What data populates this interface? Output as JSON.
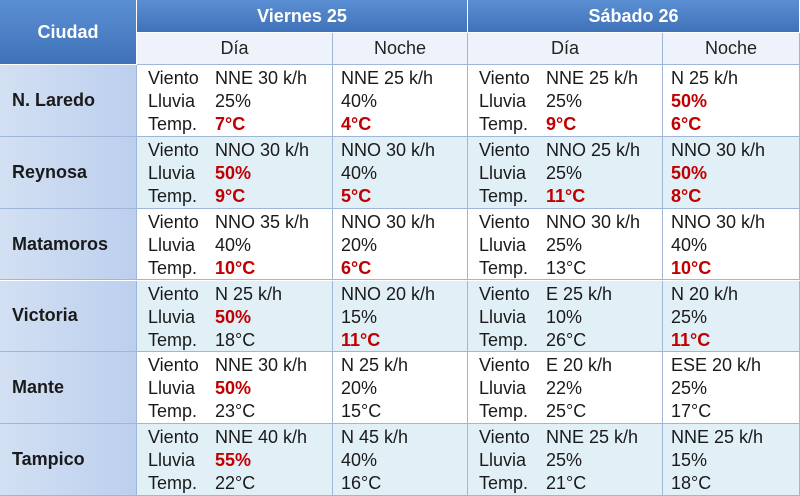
{
  "table": {
    "header": {
      "city": "Ciudad",
      "days": [
        {
          "label": "Viernes 25",
          "periods": [
            "Día",
            "Noche"
          ]
        },
        {
          "label": "Sábado  26",
          "periods": [
            "Día",
            "Noche"
          ]
        }
      ]
    },
    "labels": [
      "Viento",
      "Lluvia",
      "Temp."
    ],
    "alert_color": "#c00000",
    "rows": [
      {
        "city": "N. Laredo",
        "cells": [
          {
            "wind": "NNE 30 k/h",
            "rain": "25%",
            "temp": "7°C",
            "alert": [
              "temp"
            ]
          },
          {
            "wind": "NNE 25 k/h",
            "rain": "40%",
            "temp": "4°C",
            "alert": [
              "temp"
            ]
          },
          {
            "wind": "NNE 25 k/h",
            "rain": "25%",
            "temp": "9°C",
            "alert": [
              "temp"
            ]
          },
          {
            "wind": "N 25 k/h",
            "rain": "50%",
            "temp": "6°C",
            "alert": [
              "rain",
              "temp"
            ]
          }
        ]
      },
      {
        "city": "Reynosa",
        "cells": [
          {
            "wind": "NNO 30 k/h",
            "rain": "50%",
            "temp": "9°C",
            "alert": [
              "rain",
              "temp"
            ]
          },
          {
            "wind": "NNO 30 k/h",
            "rain": "40%",
            "temp": "5°C",
            "alert": [
              "temp"
            ]
          },
          {
            "wind": "NNO 25 k/h",
            "rain": "25%",
            "temp": "11°C",
            "alert": [
              "temp"
            ]
          },
          {
            "wind": "NNO 30 k/h",
            "rain": "50%",
            "temp": "8°C",
            "alert": [
              "rain",
              "temp"
            ]
          }
        ]
      },
      {
        "city": "Matamoros",
        "cells": [
          {
            "wind": "NNO 35 k/h",
            "rain": "40%",
            "temp": "10°C",
            "alert": [
              "temp"
            ]
          },
          {
            "wind": "NNO 30 k/h",
            "rain": "20%",
            "temp": "6°C",
            "alert": [
              "temp"
            ]
          },
          {
            "wind": "NNO 30 k/h",
            "rain": "25%",
            "temp": "13°C",
            "alert": []
          },
          {
            "wind": "NNO 30 k/h",
            "rain": "40%",
            "temp": "10°C",
            "alert": [
              "temp"
            ]
          }
        ]
      },
      {
        "city": "Victoria",
        "cells": [
          {
            "wind": "N 25 k/h",
            "rain": "50%",
            "temp": "18°C",
            "alert": [
              "rain"
            ]
          },
          {
            "wind": "NNO 20 k/h",
            "rain": "15%",
            "temp": "11°C",
            "alert": [
              "temp"
            ]
          },
          {
            "wind": "E 25 k/h",
            "rain": "10%",
            "temp": "26°C",
            "alert": []
          },
          {
            "wind": "N 20 k/h",
            "rain": "25%",
            "temp": "11°C",
            "alert": [
              "temp"
            ]
          }
        ]
      },
      {
        "city": "Mante",
        "cells": [
          {
            "wind": "NNE 30 k/h",
            "rain": "50%",
            "temp": "23°C",
            "alert": [
              "rain"
            ]
          },
          {
            "wind": "N 25 k/h",
            "rain": "20%",
            "temp": "15°C",
            "alert": []
          },
          {
            "wind": "E 20 k/h",
            "rain": "22%",
            "temp": "25°C",
            "alert": []
          },
          {
            "wind": "ESE 20 k/h",
            "rain": "25%",
            "temp": "17°C",
            "alert": []
          }
        ]
      },
      {
        "city": "Tampico",
        "cells": [
          {
            "wind": "NNE 40 k/h",
            "rain": "55%",
            "temp": "22°C",
            "alert": [
              "rain"
            ]
          },
          {
            "wind": "N 45 k/h",
            "rain": "40%",
            "temp": "16°C",
            "alert": []
          },
          {
            "wind": "NNE 25 k/h",
            "rain": "25%",
            "temp": "21°C",
            "alert": []
          },
          {
            "wind": "NNE 25 k/h",
            "rain": "15%",
            "temp": "18°C",
            "alert": []
          }
        ]
      }
    ]
  }
}
